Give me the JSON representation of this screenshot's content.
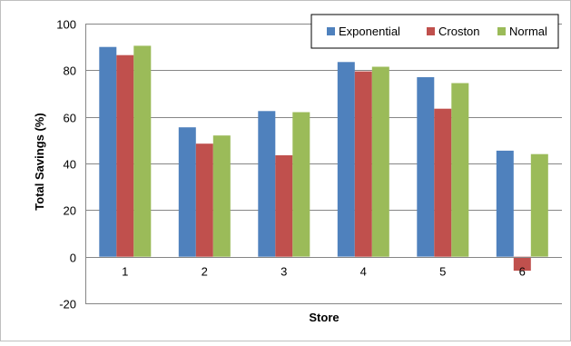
{
  "chart_data": {
    "type": "bar",
    "title": "",
    "xlabel": "Store",
    "ylabel": "Total Savings (%)",
    "categories": [
      "1",
      "2",
      "3",
      "4",
      "5",
      "6"
    ],
    "series": [
      {
        "name": "Exponential",
        "color": "#4F81BD",
        "values": [
          90,
          55.5,
          62.5,
          83.5,
          77,
          45.5
        ]
      },
      {
        "name": "Croston",
        "color": "#C0504D",
        "values": [
          86.5,
          48.5,
          43.5,
          79.5,
          63.5,
          -6
        ]
      },
      {
        "name": "Normal",
        "color": "#9BBB59",
        "values": [
          90.5,
          52,
          62,
          81.5,
          74.5,
          44
        ]
      }
    ],
    "ylim": [
      -20,
      100
    ],
    "yticks": [
      "-20",
      "0",
      "20",
      "40",
      "60",
      "80",
      "100"
    ],
    "ytick_values": [
      -20,
      0,
      20,
      40,
      60,
      80,
      100
    ],
    "grid": true,
    "legend_position": "top-right"
  }
}
